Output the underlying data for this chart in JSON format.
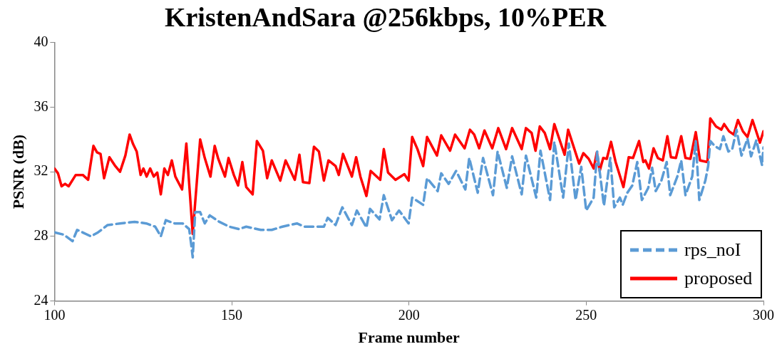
{
  "chart_data": {
    "type": "line",
    "title": "KristenAndSara @256kbps, 10%PER",
    "xlabel": "Frame number",
    "ylabel": "PSNR (dB)",
    "xlim": [
      100,
      300
    ],
    "xticks": [
      100,
      150,
      200,
      250,
      300
    ],
    "ylim": [
      24,
      40
    ],
    "yticks": [
      24,
      28,
      32,
      36,
      40
    ],
    "grid": false,
    "legend": "bottom right",
    "marker": "none",
    "series": [
      {
        "name": "rps_noI",
        "color": "#5b9bd5",
        "line_style": "dashed",
        "x": [
          100,
          102.7,
          105.1,
          106.4,
          110.3,
          112.3,
          115,
          118.5,
          122.6,
          125.9,
          128.4,
          130,
          131.4,
          133.9,
          136.2,
          138,
          138.6,
          139,
          139.7,
          141.1,
          142.4,
          143.8,
          146.5,
          149.3,
          152,
          154.1,
          158.2,
          161.3,
          164.3,
          168.4,
          170.5,
          176,
          177.1,
          179.3,
          181.2,
          183.9,
          185.3,
          188,
          189,
          191.7,
          192.9,
          195.2,
          197.2,
          199.9,
          200.9,
          204,
          205.1,
          208.1,
          209.1,
          211.2,
          213.3,
          215.9,
          217,
          219.4,
          220.9,
          223.7,
          225,
          227.6,
          229.1,
          231.8,
          233,
          235.9,
          237.1,
          239.8,
          241,
          243.5,
          245.1,
          247,
          248.6,
          250,
          252.1,
          253.1,
          255,
          256.8,
          257.9,
          259.5,
          260.3,
          261.6,
          263,
          264.4,
          265.7,
          267.5,
          268.6,
          269.6,
          271.2,
          272.7,
          273.7,
          275.7,
          276.8,
          278,
          279.9,
          280.9,
          281.9,
          283.6,
          284.4,
          285,
          286.2,
          287.7,
          288.7,
          290.1,
          291.2,
          292.4,
          293.8,
          295.5,
          296.5,
          298,
          299.6,
          300
        ],
        "values": [
          28.25,
          28.1,
          27.7,
          28.4,
          28.0,
          28.25,
          28.7,
          28.8,
          28.9,
          28.8,
          28.6,
          28.0,
          29.0,
          28.8,
          28.8,
          28.45,
          27.45,
          26.7,
          29.5,
          29.5,
          28.8,
          29.3,
          28.9,
          28.6,
          28.45,
          28.6,
          28.4,
          28.4,
          28.6,
          28.8,
          28.6,
          28.6,
          29.15,
          28.7,
          29.8,
          28.7,
          29.6,
          28.55,
          29.7,
          29.05,
          30.55,
          29.0,
          29.6,
          28.8,
          30.4,
          29.95,
          31.6,
          30.8,
          31.9,
          31.25,
          32.05,
          30.9,
          32.85,
          30.7,
          32.85,
          30.55,
          33.25,
          31.0,
          32.95,
          30.6,
          33.0,
          30.4,
          33.3,
          30.25,
          33.85,
          30.4,
          33.75,
          30.25,
          32.3,
          29.6,
          30.4,
          33.25,
          29.9,
          32.85,
          29.8,
          30.4,
          29.95,
          30.7,
          31.15,
          32.6,
          30.25,
          31.0,
          32.25,
          30.8,
          31.45,
          32.6,
          30.55,
          31.7,
          32.7,
          30.55,
          31.7,
          33.9,
          30.25,
          31.45,
          32.35,
          33.9,
          33.6,
          33.4,
          34.2,
          33.25,
          33.4,
          34.6,
          33.0,
          34.05,
          32.95,
          33.95,
          32.4,
          33.5
        ]
      },
      {
        "name": "proposed",
        "color": "#ff0000",
        "line_style": "solid",
        "x": [
          100,
          101,
          102,
          103,
          104,
          106,
          108,
          109.5,
          111,
          112,
          113,
          114,
          115.5,
          117,
          118.5,
          120,
          121.2,
          122.2,
          123.2,
          124.3,
          125.1,
          126,
          127,
          128,
          129,
          130,
          131,
          132,
          133.1,
          134.1,
          136,
          137.2,
          139,
          141.1,
          142.4,
          144,
          145.2,
          146.2,
          148.1,
          149.1,
          150.6,
          151.8,
          153,
          154.1,
          155.9,
          157.1,
          158.8,
          160,
          161.3,
          163.7,
          165.2,
          167.8,
          169.1,
          170.1,
          171.9,
          173.2,
          174.6,
          176,
          177.3,
          179.3,
          180.2,
          181.4,
          183.9,
          185.1,
          186.3,
          188,
          189.2,
          191.9,
          192.9,
          194.1,
          196.2,
          198.7,
          199.9,
          200.9,
          202.4,
          204,
          205.1,
          207.9,
          209.1,
          211.6,
          213,
          215.7,
          217.2,
          218.4,
          219.8,
          221.3,
          223.5,
          225.2,
          227.4,
          229.1,
          231.8,
          233,
          234.6,
          235.7,
          236.9,
          238.3,
          239.8,
          241,
          243.9,
          244.9,
          248,
          249.2,
          250.7,
          252.1,
          253,
          253.8,
          254.8,
          255.8,
          257,
          258.3,
          260.5,
          262,
          263.2,
          264.9,
          266.1,
          266.7,
          267.7,
          269,
          270.2,
          271.6,
          272.9,
          273.9,
          275.3,
          276.8,
          278,
          279.4,
          280.9,
          282.1,
          284.2,
          285,
          286.6,
          288.1,
          288.9,
          290.3,
          291.6,
          292.8,
          294.2,
          295.5,
          296.9,
          299,
          300
        ],
        "values": [
          32.2,
          31.9,
          31.1,
          31.25,
          31.1,
          31.8,
          31.8,
          31.5,
          33.6,
          33.2,
          33.1,
          31.6,
          32.9,
          32.4,
          32.0,
          33.0,
          34.3,
          33.7,
          33.25,
          31.8,
          32.2,
          31.7,
          32.2,
          31.7,
          31.95,
          30.6,
          32.2,
          31.8,
          32.7,
          31.7,
          30.9,
          33.75,
          28.15,
          34.0,
          32.85,
          31.7,
          33.6,
          32.8,
          31.7,
          32.85,
          31.8,
          31.15,
          32.6,
          31.05,
          30.6,
          33.9,
          33.3,
          31.6,
          32.7,
          31.45,
          32.7,
          31.5,
          33.05,
          31.35,
          31.3,
          33.55,
          33.25,
          31.45,
          32.7,
          32.35,
          31.8,
          33.1,
          31.7,
          32.9,
          31.7,
          30.5,
          32.05,
          31.5,
          33.4,
          31.95,
          31.5,
          31.85,
          31.45,
          34.15,
          33.4,
          32.35,
          34.15,
          33.0,
          34.25,
          33.3,
          34.3,
          33.45,
          34.6,
          34.3,
          33.45,
          34.55,
          33.45,
          34.7,
          33.4,
          34.7,
          33.4,
          34.7,
          34.4,
          33.3,
          34.8,
          34.4,
          33.4,
          34.95,
          33.05,
          34.6,
          32.5,
          33.15,
          32.8,
          32.2,
          33.2,
          32.05,
          32.85,
          32.8,
          33.85,
          32.6,
          31.05,
          32.9,
          32.85,
          33.9,
          32.6,
          32.7,
          32.2,
          33.45,
          32.85,
          32.7,
          34.2,
          32.9,
          32.85,
          34.2,
          32.85,
          32.8,
          34.45,
          32.7,
          32.6,
          35.3,
          34.8,
          34.6,
          34.95,
          34.5,
          34.3,
          35.2,
          34.5,
          34.15,
          35.2,
          33.8,
          34.5
        ]
      }
    ]
  }
}
